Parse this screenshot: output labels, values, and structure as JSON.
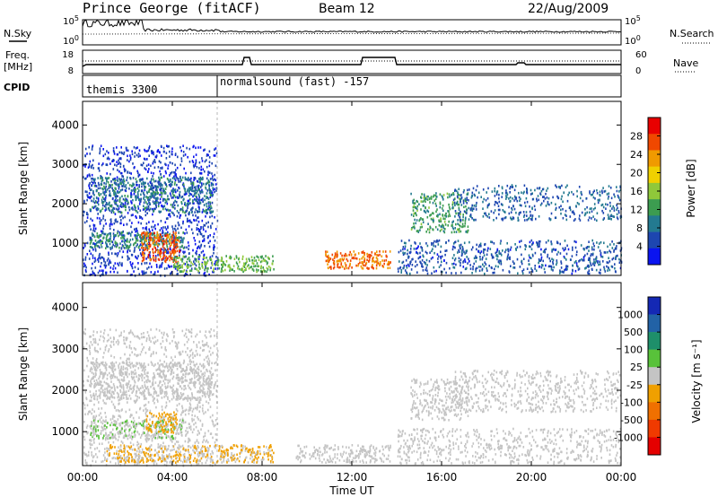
{
  "header": {
    "station": "Prince George (fitACF)",
    "beam": "Beam 12",
    "date": "22/Aug/2009"
  },
  "noise_panel": {
    "left_label": "N.Sky",
    "right_label": "N.Search",
    "ticks_left": [
      "10^5",
      "10^0"
    ],
    "ticks_right": [
      "10^5",
      "10^0"
    ]
  },
  "freq_panel": {
    "left_label_line1": "Freq.",
    "left_label_line2": "[MHz]",
    "right_label": "Nave",
    "ticks_left": [
      "18",
      "8"
    ],
    "ticks_right": [
      "60",
      "0"
    ]
  },
  "cpid_panel": {
    "label": "CPID",
    "segments": [
      {
        "name": "themis 3300",
        "start_hour": 0
      },
      {
        "name": "normalsound (fast) -157",
        "start_hour": 6
      }
    ]
  },
  "colors": {
    "power_scale": [
      "#0a14f0",
      "#1d46b0",
      "#237a90",
      "#3c9c50",
      "#8fc83a",
      "#f0d000",
      "#f09a00",
      "#f04800",
      "#e80000"
    ],
    "velocity_scale": [
      "#1428b4",
      "#2262a6",
      "#1e8f6a",
      "#58c23a",
      "#c4c4c4",
      "#f0a000",
      "#f07000",
      "#f03a00",
      "#e40000"
    ]
  },
  "chart_data": [
    {
      "type": "heatmap",
      "panel": "power",
      "ylabel": "Slant Range [km]",
      "yticks": [
        "1000",
        "2000",
        "3000",
        "4000"
      ],
      "ylim": [
        180,
        4600
      ],
      "xlim_hours": [
        0,
        24
      ],
      "colorbar_label": "Power [dB]",
      "colorbar_ticks": [
        "4",
        "8",
        "12",
        "16",
        "20",
        "24",
        "28"
      ],
      "colorbar_range": [
        0,
        32
      ],
      "features": [
        {
          "t": [
            0.0,
            6.0
          ],
          "r": [
            200,
            3500
          ],
          "value": 4,
          "density": 0.35
        },
        {
          "t": [
            0.3,
            5.8
          ],
          "r": [
            1800,
            2700
          ],
          "value": 9,
          "density": 0.6
        },
        {
          "t": [
            0.3,
            4.5
          ],
          "r": [
            900,
            1300
          ],
          "value": 11,
          "density": 0.75
        },
        {
          "t": [
            2.6,
            4.3
          ],
          "r": [
            550,
            1300
          ],
          "value": 26,
          "density": 0.85
        },
        {
          "t": [
            4.0,
            8.5
          ],
          "r": [
            300,
            700
          ],
          "value": 14,
          "density": 0.7
        },
        {
          "t": [
            10.8,
            13.7
          ],
          "r": [
            380,
            820
          ],
          "value": 25,
          "density": 0.85
        },
        {
          "t": [
            14.0,
            24.0
          ],
          "r": [
            250,
            1100
          ],
          "value": 6,
          "density": 0.4
        },
        {
          "t": [
            14.6,
            17.2
          ],
          "r": [
            1300,
            2300
          ],
          "value": 12,
          "density": 0.5
        },
        {
          "t": [
            16.5,
            24.0
          ],
          "r": [
            1600,
            2500
          ],
          "value": 7,
          "density": 0.35
        }
      ]
    },
    {
      "type": "heatmap",
      "panel": "velocity",
      "ylabel": "Slant Range [km]",
      "yticks": [
        "1000",
        "2000",
        "3000",
        "4000"
      ],
      "ylim": [
        180,
        4600
      ],
      "xlim_hours": [
        0,
        24
      ],
      "colorbar_label": "Velocity [m s⁻¹]",
      "colorbar_ticks": [
        "1000",
        "500",
        "100",
        "25",
        "-25",
        "-100",
        "-500",
        "-1000"
      ],
      "colorbar_range": [
        -1200,
        1200
      ],
      "features": [
        {
          "t": [
            0.0,
            6.0
          ],
          "r": [
            200,
            3500
          ],
          "value": 0,
          "density": 0.3
        },
        {
          "t": [
            0.3,
            5.8
          ],
          "r": [
            1800,
            2700
          ],
          "value": 5,
          "density": 0.6
        },
        {
          "t": [
            0.3,
            4.5
          ],
          "r": [
            850,
            1300
          ],
          "value": 120,
          "density": 0.7
        },
        {
          "t": [
            2.8,
            4.2
          ],
          "r": [
            1000,
            1500
          ],
          "value": -200,
          "density": 0.6
        },
        {
          "t": [
            1.0,
            8.5
          ],
          "r": [
            280,
            700
          ],
          "value": -140,
          "density": 0.7
        },
        {
          "t": [
            9.5,
            13.7
          ],
          "r": [
            280,
            700
          ],
          "value": -80,
          "density": 0.6
        },
        {
          "t": [
            14.0,
            24.0
          ],
          "r": [
            250,
            1100
          ],
          "value": -60,
          "density": 0.35
        },
        {
          "t": [
            14.6,
            17.2
          ],
          "r": [
            1300,
            2300
          ],
          "value": 8,
          "density": 0.5
        },
        {
          "t": [
            16.5,
            24.0
          ],
          "r": [
            1500,
            2500
          ],
          "value": -5,
          "density": 0.35
        }
      ]
    }
  ],
  "x_axis": {
    "label": "Time UT",
    "ticks": [
      "00:00",
      "04:00",
      "08:00",
      "12:00",
      "16:00",
      "20:00",
      "00:00"
    ],
    "tick_hours": [
      0,
      4,
      8,
      12,
      16,
      20,
      24
    ]
  }
}
